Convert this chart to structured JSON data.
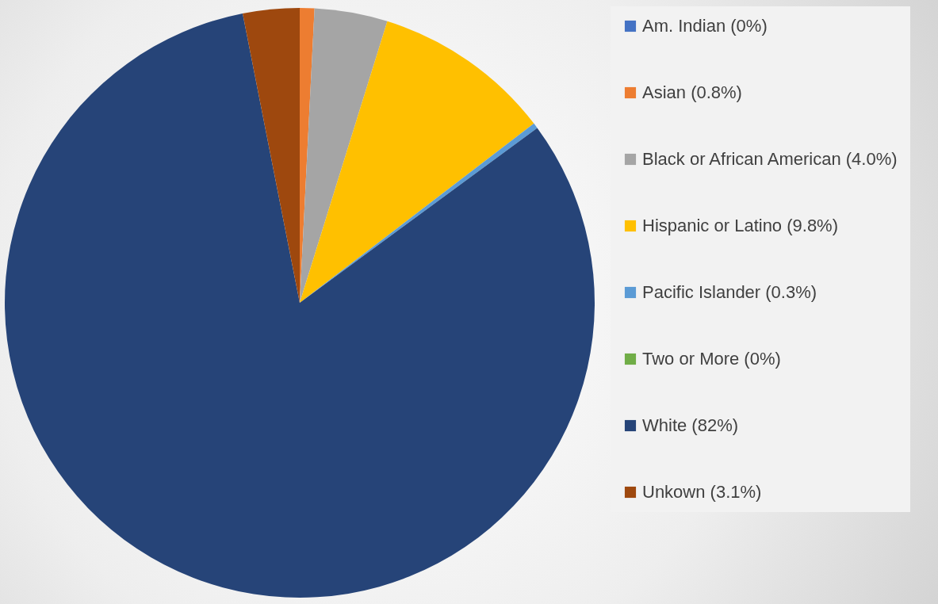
{
  "chart_data": {
    "type": "pie",
    "categories": [
      "Am. Indian (0%)",
      "Asian (0.8%)",
      "Black or African American (4.0%)",
      "Hispanic or Latino (9.8%)",
      "Pacific Islander (0.3%)",
      "Two or More (0%)",
      "White (82%)",
      "Unkown (3.1%)"
    ],
    "values": [
      0,
      0.8,
      4.0,
      9.8,
      0.3,
      0,
      82,
      3.1
    ],
    "colors": [
      "#4472c4",
      "#ed7d31",
      "#a5a5a5",
      "#ffc000",
      "#5b9bd5",
      "#70ad47",
      "#264478",
      "#9e480e"
    ],
    "legend": "right"
  }
}
